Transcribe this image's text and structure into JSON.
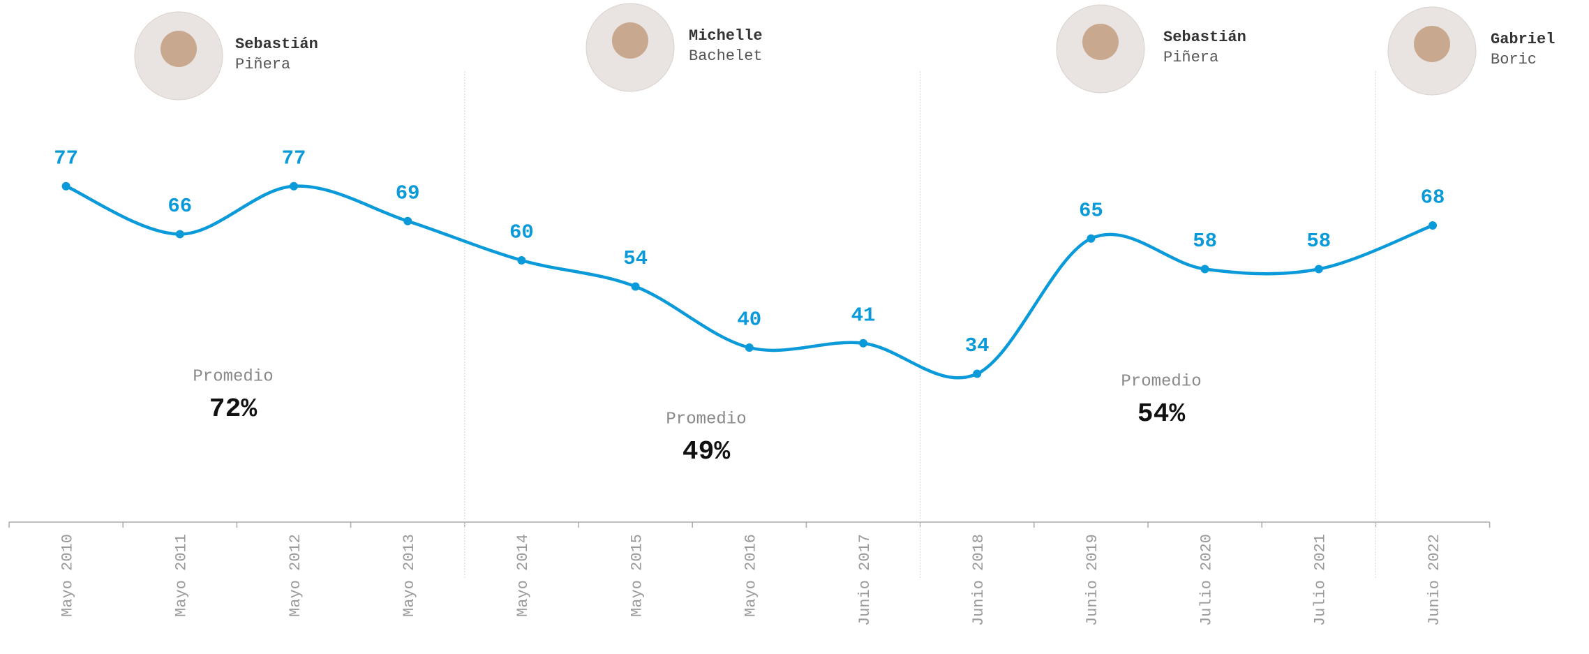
{
  "chart_data": {
    "type": "line",
    "categories": [
      "Mayo 2010",
      "Mayo 2011",
      "Mayo 2012",
      "Mayo 2013",
      "Mayo 2014",
      "Mayo 2015",
      "Mayo 2016",
      "Junio 2017",
      "Junio 2018",
      "Junio 2019",
      "Julio 2020",
      "Julio 2021",
      "Junio 2022"
    ],
    "values": [
      77,
      66,
      77,
      69,
      60,
      54,
      40,
      41,
      34,
      65,
      58,
      58,
      68
    ],
    "color": "#0a9ad9",
    "periods": [
      {
        "first": "Sebastián",
        "last": "Piñera",
        "label": "Promedio",
        "average": 72,
        "average_label": "72%"
      },
      {
        "first": "Michelle",
        "last": "Bachelet",
        "label": "Promedio",
        "average": 49,
        "average_label": "49%"
      },
      {
        "first": "Sebastián",
        "last": "Piñera",
        "label": "Promedio",
        "average": 54,
        "average_label": "54%"
      },
      {
        "first": "Gabriel",
        "last": "Boric"
      }
    ]
  }
}
